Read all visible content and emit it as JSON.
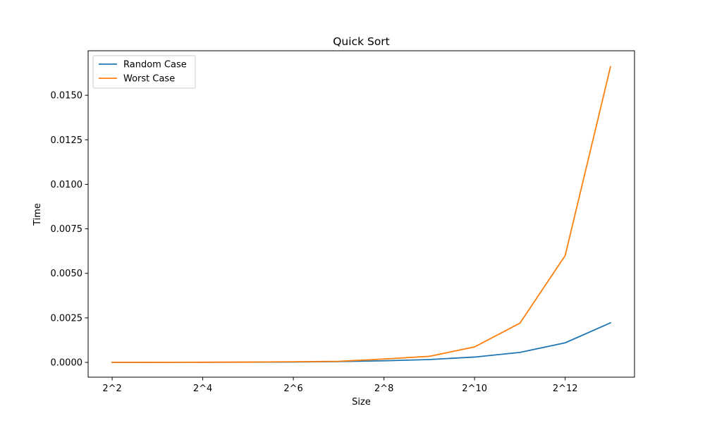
{
  "chart_data": {
    "type": "line",
    "title": "Quick Sort",
    "xlabel": "Size",
    "ylabel": "Time",
    "x": [
      2,
      3,
      4,
      5,
      6,
      7,
      8,
      9,
      10,
      11,
      12,
      13
    ],
    "x_tick_values": [
      2,
      4,
      6,
      8,
      10,
      12
    ],
    "x_tick_labels": [
      "2^2",
      "2^4",
      "2^6",
      "2^8",
      "2^10",
      "2^12"
    ],
    "xlim": [
      1.47,
      13.53
    ],
    "y_tick_values": [
      0.0,
      0.0025,
      0.005,
      0.0075,
      0.01,
      0.0125,
      0.015
    ],
    "y_tick_labels": [
      "0.0000",
      "0.0025",
      "0.0050",
      "0.0075",
      "0.0100",
      "0.0125",
      "0.0150"
    ],
    "ylim": [
      -0.00083,
      0.0175
    ],
    "grid": false,
    "legend_position": "top-left",
    "series": [
      {
        "name": "Random Case",
        "color": "#1f77b4",
        "values": [
          2e-06,
          4e-06,
          7e-06,
          1.2e-05,
          2.4e-05,
          4.5e-05,
          9e-05,
          0.00016,
          0.0003,
          0.00056,
          0.0011,
          0.00222
        ]
      },
      {
        "name": "Worst Case",
        "color": "#ff7f0e",
        "values": [
          2e-06,
          4e-06,
          8e-06,
          1.8e-05,
          3.5e-05,
          6e-05,
          0.00019,
          0.00034,
          0.00087,
          0.0022,
          0.006,
          0.0166
        ]
      }
    ]
  }
}
